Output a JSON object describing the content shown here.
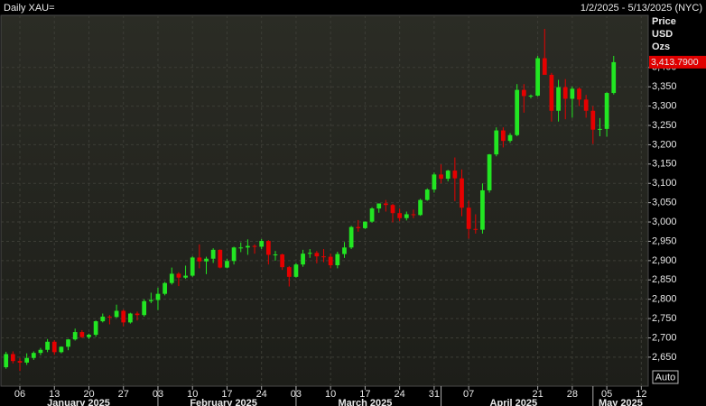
{
  "chart_data": {
    "type": "candlestick",
    "title": "Daily XAU=",
    "subtitle": "1/2/2025 - 5/13/2025 (NYC)",
    "y_axis_label": [
      "Price",
      "USD",
      "Ozs"
    ],
    "last_value_label": "3,413.7900",
    "button": "Auto",
    "up_color": "#22e622",
    "down_color": "#e60000",
    "grid": true,
    "xlim": [
      "2025-01-02",
      "2025-05-13"
    ],
    "ylim": [
      2575,
      3535
    ],
    "yticks": [
      {
        "value": 2650,
        "label": "2,650"
      },
      {
        "value": 2700,
        "label": "2,700"
      },
      {
        "value": 2750,
        "label": "2,750"
      },
      {
        "value": 2800,
        "label": "2,800"
      },
      {
        "value": 2850,
        "label": "2,850"
      },
      {
        "value": 2900,
        "label": "2,900"
      },
      {
        "value": 2950,
        "label": "2,950"
      },
      {
        "value": 3000,
        "label": "3,000"
      },
      {
        "value": 3050,
        "label": "3,050"
      },
      {
        "value": 3100,
        "label": "3,100"
      },
      {
        "value": 3150,
        "label": "3,150"
      },
      {
        "value": 3200,
        "label": "3,200"
      },
      {
        "value": 3250,
        "label": "3,250"
      },
      {
        "value": 3300,
        "label": "3,300"
      },
      {
        "value": 3350,
        "label": "3,350"
      },
      {
        "value": 3400,
        "label": "3,400"
      }
    ],
    "xticks": [
      {
        "value": "2025-01-06",
        "label": "06"
      },
      {
        "value": "2025-01-13",
        "label": "13"
      },
      {
        "value": "2025-01-20",
        "label": "20"
      },
      {
        "value": "2025-01-27",
        "label": "27"
      },
      {
        "value": "2025-02-03",
        "label": "03"
      },
      {
        "value": "2025-02-10",
        "label": "10"
      },
      {
        "value": "2025-02-17",
        "label": "17"
      },
      {
        "value": "2025-02-24",
        "label": "24"
      },
      {
        "value": "2025-03-03",
        "label": "03"
      },
      {
        "value": "2025-03-10",
        "label": "10"
      },
      {
        "value": "2025-03-17",
        "label": "17"
      },
      {
        "value": "2025-03-24",
        "label": "24"
      },
      {
        "value": "2025-03-31",
        "label": "31"
      },
      {
        "value": "2025-04-07",
        "label": "07"
      },
      {
        "value": "2025-04-21",
        "label": "21"
      },
      {
        "value": "2025-04-28",
        "label": "28"
      },
      {
        "value": "2025-05-05",
        "label": "05"
      },
      {
        "value": "2025-05-12",
        "label": "12"
      }
    ],
    "months": [
      {
        "value": "2025-01",
        "label": "January 2025"
      },
      {
        "value": "2025-02",
        "label": "February 2025"
      },
      {
        "value": "2025-03",
        "label": "March 2025"
      },
      {
        "value": "2025-04",
        "label": "April 2025"
      },
      {
        "value": "2025-05",
        "label": "May 2025"
      }
    ],
    "x": [
      "2025-01-02",
      "2025-01-03",
      "2025-01-06",
      "2025-01-07",
      "2025-01-08",
      "2025-01-09",
      "2025-01-10",
      "2025-01-13",
      "2025-01-14",
      "2025-01-15",
      "2025-01-16",
      "2025-01-17",
      "2025-01-20",
      "2025-01-21",
      "2025-01-22",
      "2025-01-23",
      "2025-01-24",
      "2025-01-27",
      "2025-01-28",
      "2025-01-29",
      "2025-01-30",
      "2025-01-31",
      "2025-02-03",
      "2025-02-04",
      "2025-02-05",
      "2025-02-06",
      "2025-02-07",
      "2025-02-10",
      "2025-02-11",
      "2025-02-12",
      "2025-02-13",
      "2025-02-14",
      "2025-02-17",
      "2025-02-18",
      "2025-02-19",
      "2025-02-20",
      "2025-02-21",
      "2025-02-24",
      "2025-02-25",
      "2025-02-26",
      "2025-02-27",
      "2025-02-28",
      "2025-03-03",
      "2025-03-04",
      "2025-03-05",
      "2025-03-06",
      "2025-03-07",
      "2025-03-10",
      "2025-03-11",
      "2025-03-12",
      "2025-03-13",
      "2025-03-14",
      "2025-03-17",
      "2025-03-18",
      "2025-03-19",
      "2025-03-20",
      "2025-03-21",
      "2025-03-24",
      "2025-03-25",
      "2025-03-26",
      "2025-03-27",
      "2025-03-28",
      "2025-03-31",
      "2025-04-01",
      "2025-04-02",
      "2025-04-03",
      "2025-04-04",
      "2025-04-07",
      "2025-04-08",
      "2025-04-09",
      "2025-04-10",
      "2025-04-11",
      "2025-04-14",
      "2025-04-15",
      "2025-04-16",
      "2025-04-17",
      "2025-04-18",
      "2025-04-21",
      "2025-04-22",
      "2025-04-23",
      "2025-04-24",
      "2025-04-25",
      "2025-04-28",
      "2025-04-29",
      "2025-04-30",
      "2025-05-01",
      "2025-05-02",
      "2025-05-05",
      "2025-05-06"
    ],
    "open": [
      2624,
      2658,
      2640,
      2636,
      2648,
      2661,
      2669,
      2690,
      2663,
      2677,
      2696,
      2715,
      2702,
      2708,
      2743,
      2755,
      2754,
      2770,
      2740,
      2763,
      2759,
      2795,
      2798,
      2814,
      2842,
      2866,
      2856,
      2861,
      2908,
      2898,
      2905,
      2928,
      2882,
      2899,
      2934,
      2934,
      2938,
      2936,
      2951,
      2915,
      2916,
      2883,
      2858,
      2890,
      2918,
      2920,
      2911,
      2910,
      2888,
      2917,
      2934,
      2987,
      2984,
      3001,
      3035,
      3048,
      3044,
      3023,
      3010,
      3020,
      3018,
      3057,
      3084,
      3123,
      3112,
      3133,
      3113,
      3037,
      2982,
      2980,
      3082,
      3175,
      3237,
      3210,
      3225,
      3342,
      3326,
      3327,
      3424,
      3381,
      3288,
      3349,
      3319,
      3345,
      3317,
      3288,
      3239,
      3241,
      3334
    ],
    "high": [
      2664,
      2665,
      2648,
      2660,
      2665,
      2674,
      2697,
      2694,
      2678,
      2697,
      2724,
      2720,
      2711,
      2745,
      2763,
      2759,
      2786,
      2773,
      2765,
      2768,
      2800,
      2817,
      2830,
      2845,
      2882,
      2870,
      2887,
      2911,
      2942,
      2910,
      2932,
      2929,
      2905,
      2936,
      2947,
      2955,
      2942,
      2956,
      2953,
      2925,
      2918,
      2886,
      2894,
      2928,
      2930,
      2925,
      2930,
      2918,
      2923,
      2948,
      2990,
      3005,
      3001,
      3038,
      3048,
      3057,
      3047,
      3035,
      3027,
      3032,
      3060,
      3087,
      3128,
      3149,
      3135,
      3167,
      3136,
      3055,
      3020,
      3100,
      3176,
      3245,
      3245,
      3230,
      3357,
      3357,
      3330,
      3430,
      3500,
      3386,
      3368,
      3370,
      3351,
      3349,
      3329,
      3300,
      3269,
      3336,
      3430
    ],
    "low": [
      2620,
      2634,
      2614,
      2630,
      2643,
      2655,
      2663,
      2656,
      2660,
      2668,
      2693,
      2700,
      2697,
      2703,
      2740,
      2735,
      2752,
      2730,
      2737,
      2745,
      2755,
      2790,
      2772,
      2810,
      2838,
      2834,
      2853,
      2858,
      2880,
      2865,
      2894,
      2880,
      2880,
      2890,
      2922,
      2915,
      2918,
      2930,
      2890,
      2900,
      2876,
      2833,
      2856,
      2884,
      2907,
      2893,
      2896,
      2880,
      2880,
      2907,
      2930,
      2975,
      2982,
      2998,
      3024,
      3027,
      2999,
      3002,
      3004,
      3010,
      3016,
      3055,
      3076,
      3100,
      3105,
      3054,
      3015,
      2957,
      2970,
      2970,
      3076,
      3170,
      3193,
      3205,
      3222,
      3283,
      3320,
      3325,
      3382,
      3260,
      3260,
      3266,
      3270,
      3300,
      3270,
      3202,
      3222,
      3221,
      3330
    ],
    "close": [
      2658,
      2640,
      2636,
      2648,
      2661,
      2669,
      2690,
      2663,
      2677,
      2696,
      2715,
      2702,
      2708,
      2743,
      2755,
      2754,
      2770,
      2740,
      2763,
      2759,
      2795,
      2798,
      2814,
      2842,
      2866,
      2856,
      2861,
      2908,
      2898,
      2905,
      2928,
      2882,
      2899,
      2934,
      2934,
      2938,
      2936,
      2951,
      2915,
      2916,
      2883,
      2858,
      2890,
      2918,
      2920,
      2911,
      2910,
      2888,
      2917,
      2934,
      2987,
      2984,
      3001,
      3035,
      3048,
      3044,
      3023,
      3010,
      3020,
      3018,
      3057,
      3084,
      3123,
      3112,
      3133,
      3113,
      3037,
      2982,
      2980,
      3082,
      3175,
      3237,
      3210,
      3225,
      3342,
      3326,
      3327,
      3424,
      3381,
      3288,
      3349,
      3319,
      3345,
      3317,
      3288,
      3239,
      3241,
      3334,
      3413.79
    ]
  }
}
